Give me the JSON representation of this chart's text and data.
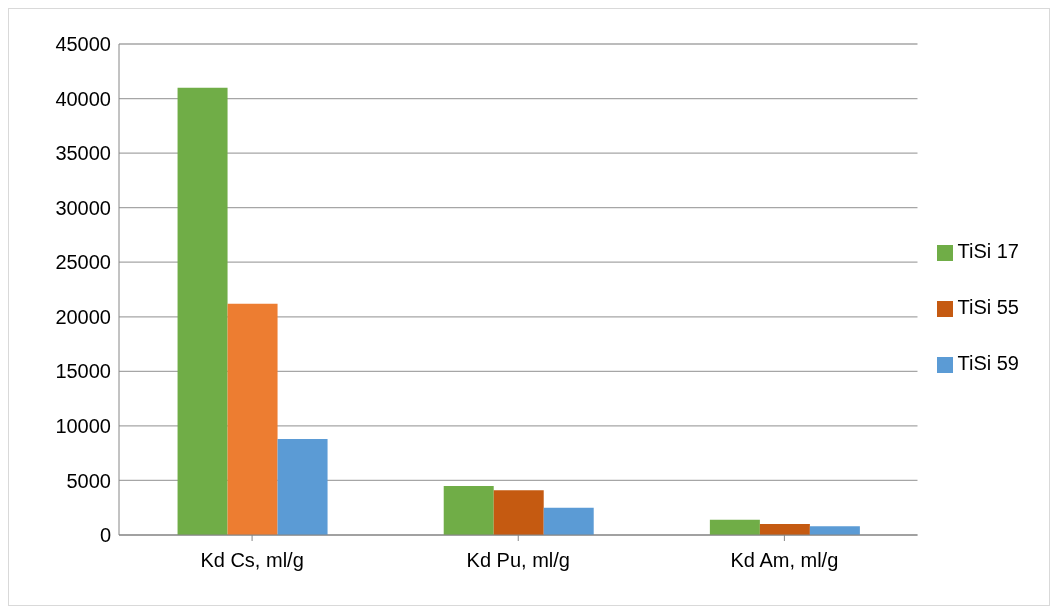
{
  "chart_data": {
    "type": "bar",
    "categories": [
      "Kd Cs, ml/g",
      "Kd Pu, ml/g",
      "Kd Am, ml/g"
    ],
    "series": [
      {
        "name": "TiSi 17",
        "color": "#70ad47",
        "values": [
          41000,
          4500,
          1400
        ]
      },
      {
        "name": "TiSi 55",
        "color": "#c55a11",
        "colors": [
          "#ed7d31",
          "#c55a11",
          "#c55a11"
        ],
        "values": [
          21200,
          4100,
          1000
        ]
      },
      {
        "name": "TiSi 59",
        "color": "#5b9bd5",
        "values": [
          8800,
          2500,
          800
        ]
      }
    ],
    "ylim": [
      0,
      45000
    ],
    "yticks": [
      0,
      5000,
      10000,
      15000,
      20000,
      25000,
      30000,
      35000,
      40000,
      45000
    ],
    "grid": "y",
    "legend": "right"
  }
}
